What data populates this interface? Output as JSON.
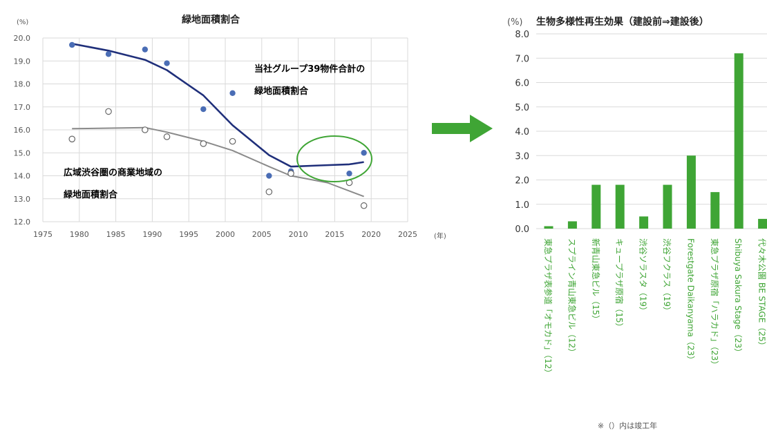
{
  "colors": {
    "blue": "#1f2f7a",
    "gray": "#8a8a8a",
    "green": "#3fa535",
    "dot": "#4a6db5"
  },
  "arrow": {
    "icon": "right-arrow-icon"
  },
  "chart_data": [
    {
      "type": "scatter",
      "title": "緑地面積割合",
      "y_unit": "(%)",
      "x_unit": "(年)",
      "xlim": [
        1975,
        2025
      ],
      "ylim": [
        12.0,
        20.0
      ],
      "x_ticks": [
        1975,
        1980,
        1985,
        1990,
        1995,
        2000,
        2005,
        2010,
        2015,
        2020,
        2025
      ],
      "y_ticks": [
        "12.0",
        "13.0",
        "14.0",
        "15.0",
        "16.0",
        "17.0",
        "18.0",
        "19.0",
        "20.0"
      ],
      "grid": true,
      "series": [
        {
          "name": "当社グループ39物件合計の緑地面積割合",
          "label_lines": [
            "当社グループ39物件合計の",
            "緑地面積割合"
          ],
          "marker": "filled",
          "points": [
            [
              1979,
              19.7
            ],
            [
              1984,
              19.3
            ],
            [
              1989,
              19.5
            ],
            [
              1992,
              18.9
            ],
            [
              1997,
              16.9
            ],
            [
              2001,
              17.6
            ],
            [
              2006,
              14.0
            ],
            [
              2009,
              14.2
            ],
            [
              2017,
              14.1
            ],
            [
              2019,
              15.0
            ]
          ],
          "trend": [
            [
              1979,
              19.75
            ],
            [
              1984,
              19.45
            ],
            [
              1989,
              19.05
            ],
            [
              1992,
              18.6
            ],
            [
              1997,
              17.5
            ],
            [
              2001,
              16.2
            ],
            [
              2006,
              14.9
            ],
            [
              2009,
              14.4
            ],
            [
              2013,
              14.45
            ],
            [
              2017,
              14.5
            ],
            [
              2019,
              14.6
            ]
          ]
        },
        {
          "name": "広域渋谷圏の商業地域の緑地面積割合",
          "label_lines": [
            "広域渋谷圏の商業地域の",
            "緑地面積割合"
          ],
          "marker": "open",
          "points": [
            [
              1979,
              15.6
            ],
            [
              1984,
              16.8
            ],
            [
              1989,
              16.0
            ],
            [
              1992,
              15.7
            ],
            [
              1997,
              15.4
            ],
            [
              2001,
              15.5
            ],
            [
              2006,
              13.3
            ],
            [
              2009,
              14.1
            ],
            [
              2017,
              13.7
            ],
            [
              2019,
              12.7
            ]
          ],
          "trend": [
            [
              1979,
              16.05
            ],
            [
              1989,
              16.1
            ],
            [
              1992,
              15.9
            ],
            [
              1997,
              15.5
            ],
            [
              2001,
              15.1
            ],
            [
              2006,
              14.4
            ],
            [
              2009,
              14.0
            ],
            [
              2014,
              13.7
            ],
            [
              2019,
              13.1
            ]
          ]
        }
      ],
      "highlight_ellipse": true
    },
    {
      "type": "bar",
      "title": "生物多様性再生効果（建設前⇒建設後）",
      "y_unit": "(%)",
      "ylim": [
        0,
        8.0
      ],
      "y_ticks": [
        "0.0",
        "1.0",
        "2.0",
        "3.0",
        "4.0",
        "5.0",
        "6.0",
        "7.0",
        "8.0"
      ],
      "categories": [
        "東急プラザ表参道「オモカド」（12）",
        "スプライン青山東急ビル（12）",
        "新青山東急ビル（15）",
        "キュープラザ原宿（15）",
        "渋谷ソラスタ（19）",
        "渋谷フクラス（19）",
        "Forestgate Daikanyama（23）",
        "東急プラザ原宿「ハラカド」（23）",
        "Shibuya Sakura Stage（23）",
        "代々木公園 BE STAGE（25）"
      ],
      "values": [
        0.1,
        0.3,
        1.8,
        1.8,
        0.5,
        1.8,
        3.0,
        1.5,
        7.2,
        0.4
      ],
      "footnote": "※（）内は竣工年"
    }
  ]
}
